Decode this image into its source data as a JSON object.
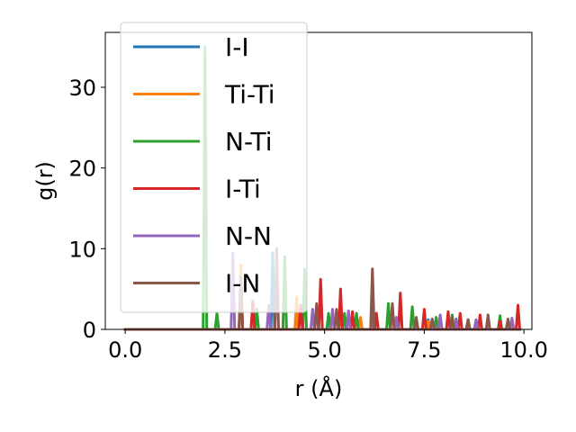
{
  "chart_data": {
    "type": "line",
    "xlabel": "r (Å)",
    "ylabel": "g(r)",
    "xlim": [
      -0.5,
      10.2
    ],
    "ylim": [
      0,
      36.8
    ],
    "xticks": [
      0.0,
      2.5,
      5.0,
      7.5,
      10.0
    ],
    "xtick_labels": [
      "0.0",
      "2.5",
      "5.0",
      "7.5",
      "10.0"
    ],
    "yticks": [
      0,
      10,
      20,
      30
    ],
    "ytick_labels": [
      "0",
      "10",
      "20",
      "30"
    ],
    "grid": false,
    "legend_position": "top-left",
    "series": [
      {
        "name": "I-I",
        "color": "#1f77b4",
        "peaks": [
          [
            3.7,
            9.5
          ],
          [
            4.3,
            2.5
          ],
          [
            6.2,
            1.5
          ],
          [
            7.6,
            1.2
          ],
          [
            8.3,
            1.3
          ]
        ]
      },
      {
        "name": "Ti-Ti",
        "color": "#ff7f0e",
        "peaks": [
          [
            2.9,
            8.0
          ],
          [
            3.2,
            3.0
          ],
          [
            4.3,
            4.0
          ],
          [
            5.4,
            2.0
          ],
          [
            5.9,
            1.5
          ],
          [
            6.3,
            2.0
          ],
          [
            7.6,
            1.0
          ],
          [
            8.6,
            1.2
          ]
        ]
      },
      {
        "name": "N-Ti",
        "color": "#2ca02c",
        "peaks": [
          [
            2.0,
            35.0
          ],
          [
            2.3,
            2.0
          ],
          [
            3.3,
            2.5
          ],
          [
            4.0,
            9.0
          ],
          [
            4.5,
            7.5
          ],
          [
            5.1,
            2.0
          ],
          [
            5.5,
            2.0
          ],
          [
            5.8,
            2.0
          ],
          [
            6.6,
            3.2
          ],
          [
            7.2,
            2.8
          ],
          [
            7.8,
            1.5
          ],
          [
            8.2,
            1.8
          ],
          [
            8.6,
            1.2
          ],
          [
            9.1,
            1.5
          ],
          [
            9.4,
            1.7
          ]
        ]
      },
      {
        "name": "I-Ti",
        "color": "#d62728",
        "peaks": [
          [
            2.9,
            6.5
          ],
          [
            3.2,
            3.5
          ],
          [
            4.4,
            3.0
          ],
          [
            4.9,
            6.2
          ],
          [
            5.4,
            5.0
          ],
          [
            5.7,
            2.2
          ],
          [
            6.3,
            2.0
          ],
          [
            6.9,
            4.5
          ],
          [
            7.5,
            2.5
          ],
          [
            8.1,
            2.2
          ],
          [
            8.4,
            2.0
          ],
          [
            8.9,
            1.8
          ],
          [
            9.4,
            1.0
          ],
          [
            9.85,
            3.0
          ]
        ]
      },
      {
        "name": "N-N",
        "color": "#9467bd",
        "peaks": [
          [
            2.7,
            9.5
          ],
          [
            3.6,
            3.0
          ],
          [
            4.7,
            2.5
          ],
          [
            5.2,
            2.5
          ],
          [
            5.6,
            2.3
          ],
          [
            6.2,
            1.5
          ],
          [
            6.8,
            1.5
          ],
          [
            7.9,
            1.8
          ],
          [
            8.3,
            1.2
          ],
          [
            8.8,
            1.2
          ],
          [
            9.7,
            1.4
          ]
        ]
      },
      {
        "name": "I-N",
        "color": "#8c564b",
        "peaks": [
          [
            2.9,
            6.5
          ],
          [
            3.8,
            10.0
          ],
          [
            4.8,
            3.2
          ],
          [
            5.3,
            2.5
          ],
          [
            6.2,
            7.5
          ],
          [
            6.7,
            3.2
          ],
          [
            7.3,
            1.5
          ],
          [
            7.7,
            1.3
          ],
          [
            8.2,
            1.5
          ],
          [
            8.6,
            1.2
          ],
          [
            9.1,
            1.8
          ],
          [
            9.6,
            1.3
          ]
        ]
      }
    ]
  }
}
